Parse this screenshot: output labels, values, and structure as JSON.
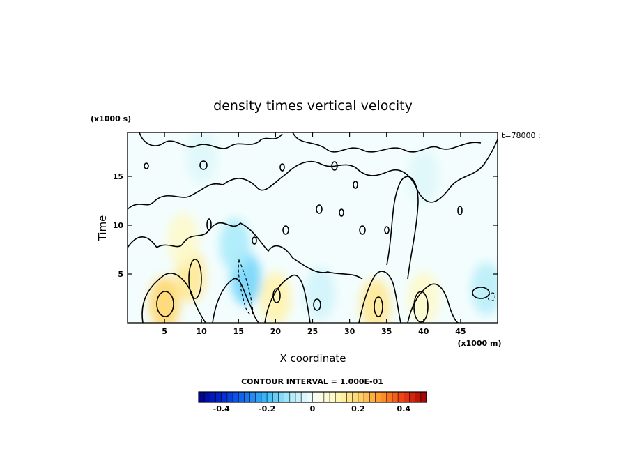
{
  "chart_data": {
    "type": "heatmap",
    "title": "density times vertical velocity",
    "xlabel": "X coordinate",
    "ylabel": "Time",
    "x_unit": "(x1000 m)",
    "y_unit": "(x1000 s)",
    "annotation": "t=78000 :",
    "xlim": [
      0,
      50
    ],
    "ylim": [
      0,
      19.5
    ],
    "x_ticks": [
      5,
      10,
      15,
      20,
      25,
      30,
      35,
      40,
      45
    ],
    "y_ticks": [
      5,
      10,
      15
    ],
    "contour_interval_label": "CONTOUR INTERVAL = 1.000E-01",
    "contour_interval": 0.1,
    "colorbar": {
      "min": -0.5,
      "max": 0.5,
      "ticks": [
        -0.4,
        -0.2,
        0,
        0.2,
        0.4
      ],
      "tick_labels": [
        "-0.4",
        "-0.2",
        "0",
        "0.2",
        "0.4"
      ]
    },
    "features": [
      {
        "kind": "positive",
        "x": 5.0,
        "y": 2.0,
        "peak": 0.2
      },
      {
        "kind": "positive",
        "x": 8.5,
        "y": 4.8,
        "peak": 0.15
      },
      {
        "kind": "positive",
        "x": 7.5,
        "y": 8.5,
        "peak": 0.08
      },
      {
        "kind": "negative",
        "x": 16.0,
        "y": 4.5,
        "peak": -0.15
      },
      {
        "kind": "negative",
        "x": 14.5,
        "y": 8.0,
        "peak": -0.1
      },
      {
        "kind": "positive",
        "x": 20.0,
        "y": 2.5,
        "peak": 0.12
      },
      {
        "kind": "positive",
        "x": 33.5,
        "y": 1.8,
        "peak": 0.15
      },
      {
        "kind": "positive",
        "x": 40.0,
        "y": 2.5,
        "peak": 0.08
      },
      {
        "kind": "negative",
        "x": 26.0,
        "y": 3.0,
        "peak": -0.05
      },
      {
        "kind": "negative",
        "x": 48.5,
        "y": 3.5,
        "peak": -0.08
      },
      {
        "kind": "negative",
        "x": 10.0,
        "y": 17.0,
        "peak": -0.03
      },
      {
        "kind": "negative",
        "x": 40.0,
        "y": 15.0,
        "peak": -0.03
      }
    ]
  }
}
